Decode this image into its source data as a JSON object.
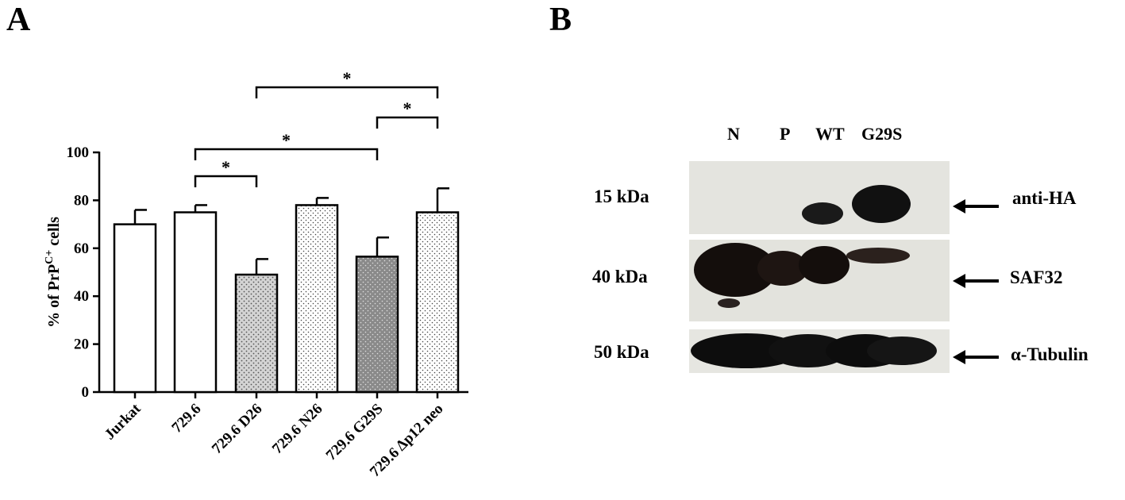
{
  "panel_a": {
    "letter": "A"
  },
  "panel_b": {
    "letter": "B",
    "lanes": [
      "N",
      "P",
      "WT",
      "G29S"
    ],
    "rows": [
      {
        "kda": "15 kDa",
        "antibody": "anti-HA"
      },
      {
        "kda": "40 kDa",
        "antibody": "SAF32"
      },
      {
        "kda": "50 kDa",
        "antibody": "α-Tubulin"
      }
    ],
    "note": "Lane layout: anti-HA shows bands only in WT and G29S; SAF32 strong in N, P, WT and weaker in G29S; α-Tubulin present in all lanes."
  },
  "chart_data": {
    "type": "bar",
    "ylabel_prefix": "% of PrP",
    "ylabel_sup": "C+",
    "ylabel_suffix": " cells",
    "ylim": [
      0,
      100
    ],
    "yticks": [
      0,
      20,
      40,
      60,
      80,
      100
    ],
    "categories": [
      "Jurkat",
      "729.6",
      "729.6 D26",
      "729.6 N26",
      "729.6 G29S",
      "729.6 Δp12 neo"
    ],
    "values": [
      70,
      75,
      49,
      78,
      56.5,
      75
    ],
    "errors": [
      6,
      3,
      6.5,
      3,
      8,
      10
    ],
    "fills": [
      "white",
      "white",
      "light-dotted",
      "white-dotted",
      "dark-dotted",
      "white-dotted"
    ],
    "significance": [
      {
        "from": 1,
        "to": 2,
        "label": "*"
      },
      {
        "from": 1,
        "to": 4,
        "label": "*"
      },
      {
        "from": 4,
        "to": 5,
        "label": "*"
      },
      {
        "from": 2,
        "to": 5,
        "label": "*"
      }
    ]
  }
}
